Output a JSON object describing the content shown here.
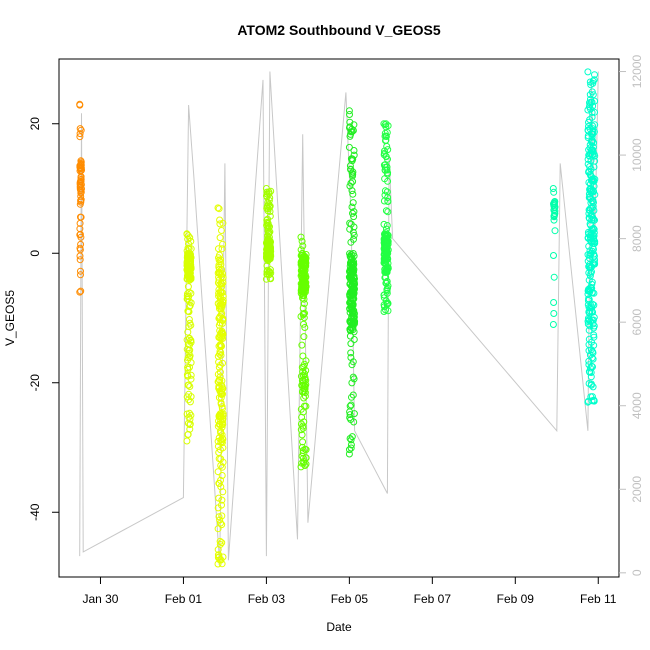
{
  "chart_data": {
    "type": "scatter",
    "title": "ATOM2 Southbound V_GEOS5",
    "xlabel": "Date",
    "ylabel": "V_GEOS5",
    "xlim": [
      "2017-01-29T00:00",
      "2017-02-11T12:00"
    ],
    "ylim": [
      -50,
      30
    ],
    "y2lim": [
      -100,
      12300
    ],
    "x_ticks": [
      {
        "date": "2017-01-30",
        "label": "Jan 30"
      },
      {
        "date": "2017-02-01",
        "label": "Feb 01"
      },
      {
        "date": "2017-02-03",
        "label": "Feb 03"
      },
      {
        "date": "2017-02-05",
        "label": "Feb 05"
      },
      {
        "date": "2017-02-07",
        "label": "Feb 07"
      },
      {
        "date": "2017-02-09",
        "label": "Feb 09"
      },
      {
        "date": "2017-02-11",
        "label": "Feb 11"
      }
    ],
    "y_ticks": [
      -40,
      -20,
      0,
      20
    ],
    "y2_ticks": [
      0,
      2000,
      4000,
      6000,
      8000,
      10000,
      12000
    ],
    "grid": false,
    "series": [
      {
        "color": "#ff8c00",
        "t": "2017-01-29T12:00",
        "dur_h": 1.0,
        "min": -6,
        "max": 23,
        "n": 60,
        "lo": 8,
        "hi": 14
      },
      {
        "color": "#d8ff00",
        "t": "2017-02-01T02:00",
        "dur_h": 2.5,
        "min": -29,
        "max": 3,
        "n": 180,
        "lo": -4,
        "hi": 0
      },
      {
        "color": "#e4ff00",
        "t": "2017-02-01T20:00",
        "dur_h": 3.0,
        "min": -48,
        "max": 7,
        "n": 200,
        "lo": -30,
        "hi": 0
      },
      {
        "color": "#a4ff00",
        "t": "2017-02-03T00:00",
        "dur_h": 2.5,
        "min": -4,
        "max": 10,
        "n": 170,
        "lo": -1,
        "hi": 2
      },
      {
        "color": "#66ff00",
        "t": "2017-02-03T20:00",
        "dur_h": 3.0,
        "min": -33,
        "max": 2.5,
        "n": 190,
        "lo": -6,
        "hi": 0
      },
      {
        "color": "#22ee22",
        "t": "2017-02-05T00:00",
        "dur_h": 3.0,
        "min": -31,
        "max": 22,
        "n": 220,
        "lo": -12,
        "hi": 0
      },
      {
        "color": "#22ff44",
        "t": "2017-02-05T20:00",
        "dur_h": 2.5,
        "min": -9,
        "max": 20,
        "n": 170,
        "lo": -3,
        "hi": 3
      },
      {
        "color": "#00ffaa",
        "t": "2017-02-09T22:00",
        "dur_h": 1.0,
        "min": -11,
        "max": 10,
        "n": 25,
        "lo": 5,
        "hi": 8
      },
      {
        "color": "#00ffcc",
        "t": "2017-02-10T18:00",
        "dur_h": 4.0,
        "min": -23,
        "max": 28,
        "n": 260,
        "lo": -15,
        "hi": 20
      }
    ],
    "secondary_line": {
      "color": "#c8c8c8",
      "t": [
        "2017-01-29T12:00",
        "2017-01-29T13:00",
        "2017-01-29T14:00",
        "2017-02-01T00:00",
        "2017-02-01T03:00",
        "2017-02-01T06:00",
        "2017-02-01T21:00",
        "2017-02-02T00:00",
        "2017-02-02T02:00",
        "2017-02-02T22:00",
        "2017-02-03T00:00",
        "2017-02-03T02:00",
        "2017-02-03T18:00",
        "2017-02-03T21:00",
        "2017-02-04T00:00",
        "2017-02-04T22:00",
        "2017-02-05T01:00",
        "2017-02-05T03:00",
        "2017-02-05T22:00",
        "2017-02-05T23:00",
        "2017-02-06T01:00",
        "2017-02-10T00:00",
        "2017-02-10T02:00",
        "2017-02-10T18:00",
        "2017-02-10T20:00",
        "2017-02-10T22:00",
        "2017-02-11T00:00"
      ],
      "v": [
        400,
        11000,
        500,
        1800,
        11200,
        9500,
        200,
        9800,
        300,
        11800,
        400,
        12000,
        800,
        10500,
        1200,
        11500,
        8500,
        3400,
        1900,
        10000,
        8000,
        3400,
        9800,
        3400,
        11800,
        8000,
        12000
      ]
    }
  }
}
